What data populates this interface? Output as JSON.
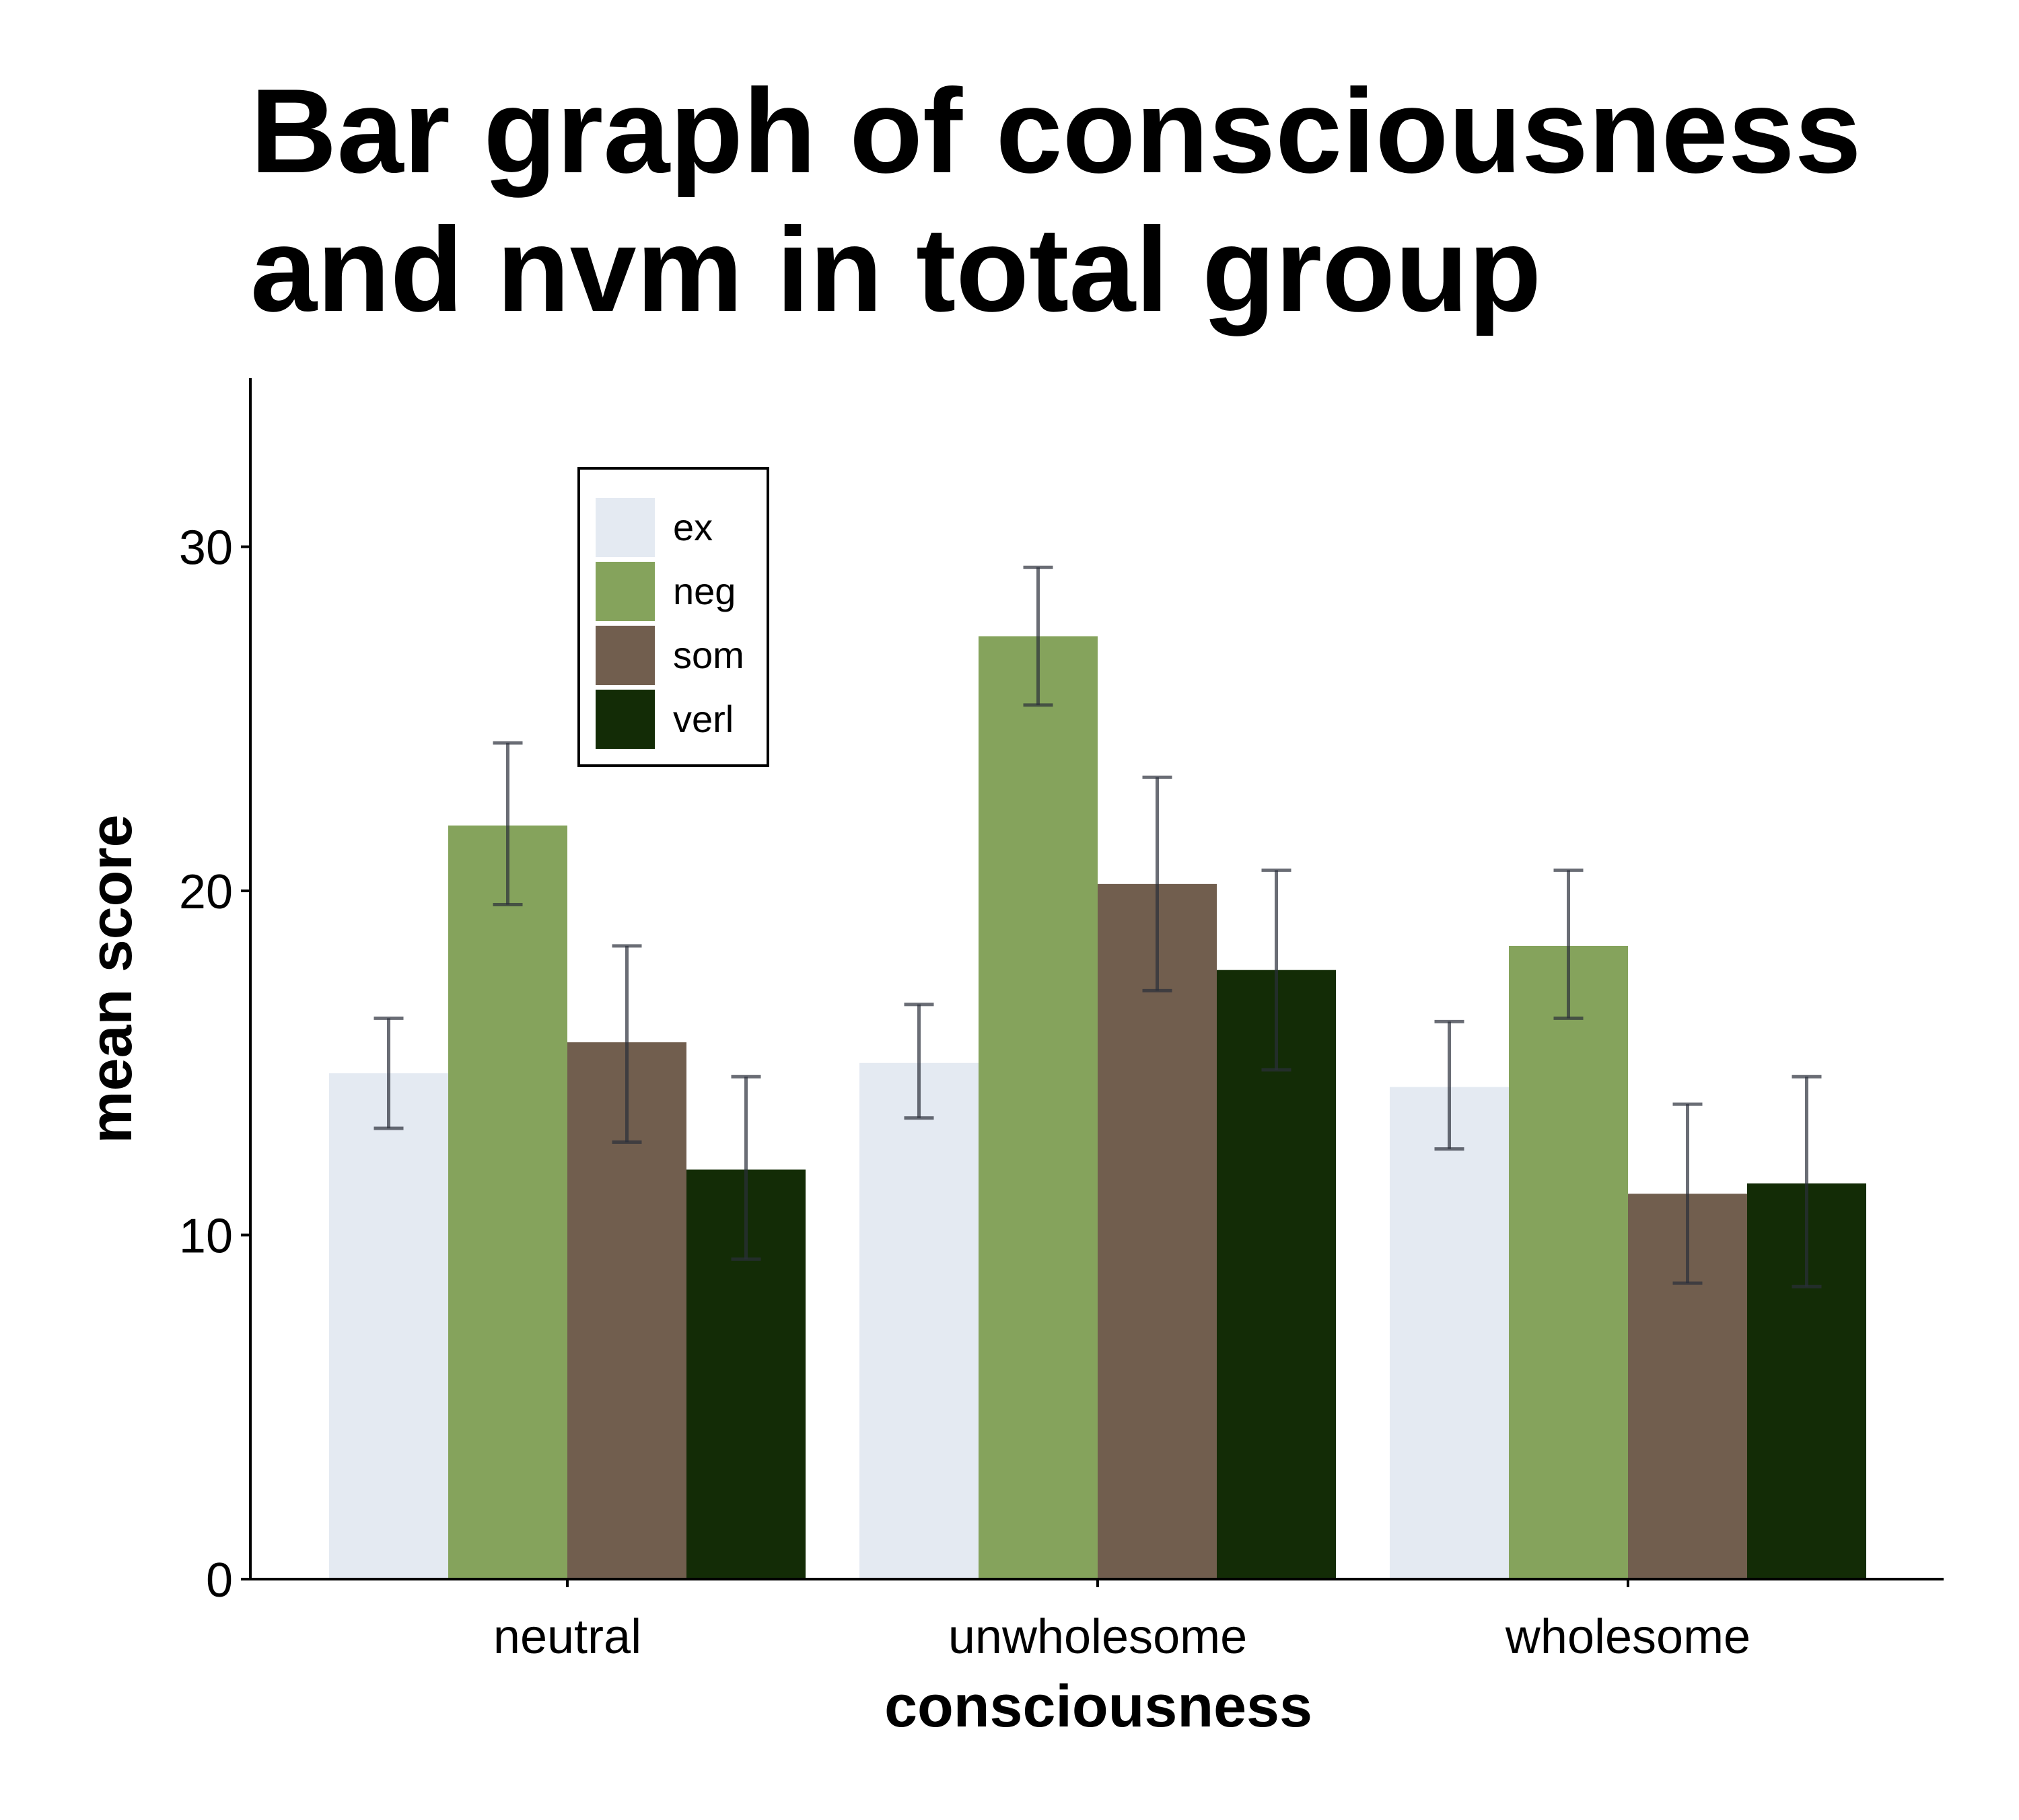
{
  "chart_data": {
    "type": "bar",
    "title_lines": [
      "Bar graph of consciousness",
      "and nvm in total group"
    ],
    "xlabel": "consciousness",
    "ylabel": "mean score",
    "categories": [
      "neutral",
      "unwholesome",
      "wholesome"
    ],
    "ylim": [
      0,
      34.9
    ],
    "yticks": [
      0,
      10,
      20,
      30
    ],
    "grid": false,
    "legend_position": "top-left",
    "series": [
      {
        "name": "ex",
        "color": "#E4EAF2",
        "values": [
          14.7,
          15.0,
          14.3
        ],
        "err_low": [
          13.1,
          13.4,
          12.5
        ],
        "err_high": [
          16.3,
          16.7,
          16.2
        ]
      },
      {
        "name": "neg",
        "color": "#85A35C",
        "values": [
          21.9,
          27.4,
          18.4
        ],
        "err_low": [
          19.6,
          25.4,
          16.3
        ],
        "err_high": [
          24.3,
          29.4,
          20.6
        ]
      },
      {
        "name": "som",
        "color": "#715E4E",
        "values": [
          15.6,
          20.2,
          11.2
        ],
        "err_low": [
          12.7,
          17.1,
          8.6
        ],
        "err_high": [
          18.4,
          23.3,
          13.8
        ]
      },
      {
        "name": "verl",
        "color": "#132C06",
        "values": [
          11.9,
          17.7,
          11.5
        ],
        "err_low": [
          9.3,
          14.8,
          8.5
        ],
        "err_high": [
          14.6,
          20.6,
          14.6
        ]
      }
    ]
  }
}
